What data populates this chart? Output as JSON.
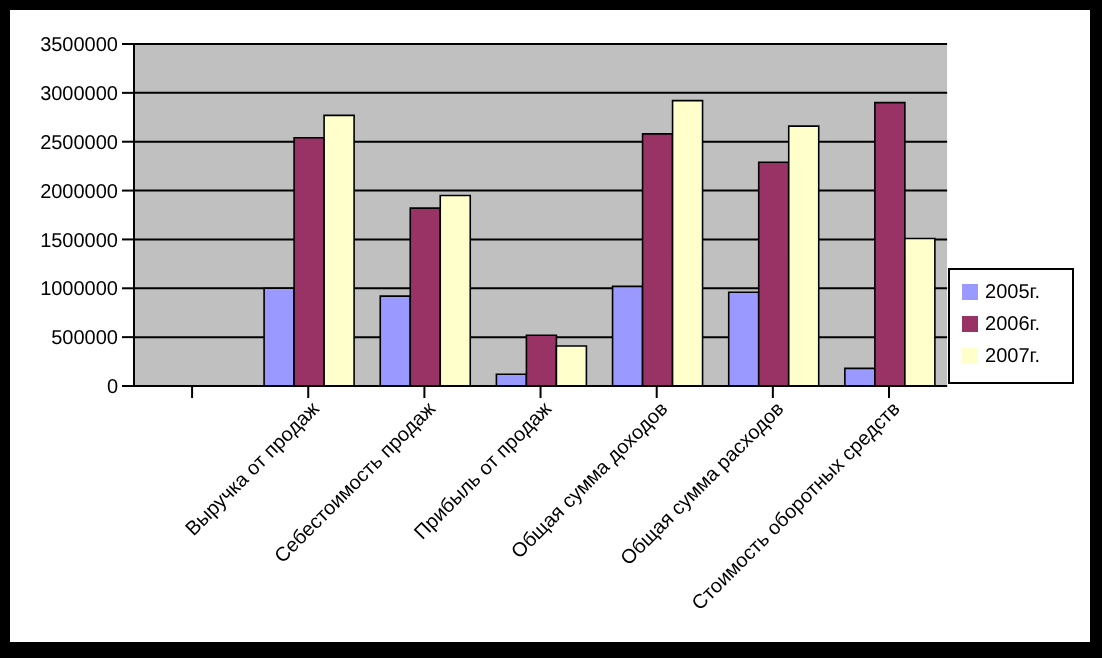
{
  "chart_data": {
    "type": "bar",
    "categories": [
      null,
      "Выручка от продаж",
      "Себестоимость продаж",
      "Прибыль от продаж",
      "Общая сумма доходов",
      "Общая сумма расходов",
      "Стоимость оборотных средств"
    ],
    "series": [
      {
        "name": "2005г.",
        "color": "#9999ff",
        "values": [
          null,
          1000000,
          920000,
          120000,
          1020000,
          960000,
          180000
        ]
      },
      {
        "name": "2006г.",
        "color": "#993366",
        "values": [
          null,
          2540000,
          1820000,
          520000,
          2580000,
          2290000,
          2900000
        ]
      },
      {
        "name": "2007г.",
        "color": "#ffffcc",
        "values": [
          null,
          2770000,
          1950000,
          410000,
          2920000,
          2660000,
          1510000
        ]
      }
    ],
    "ylim": [
      0,
      3500000
    ],
    "yticks": [
      0,
      500000,
      1000000,
      1500000,
      2000000,
      2500000,
      3000000,
      3500000
    ],
    "grid": "y",
    "legend": "right"
  }
}
